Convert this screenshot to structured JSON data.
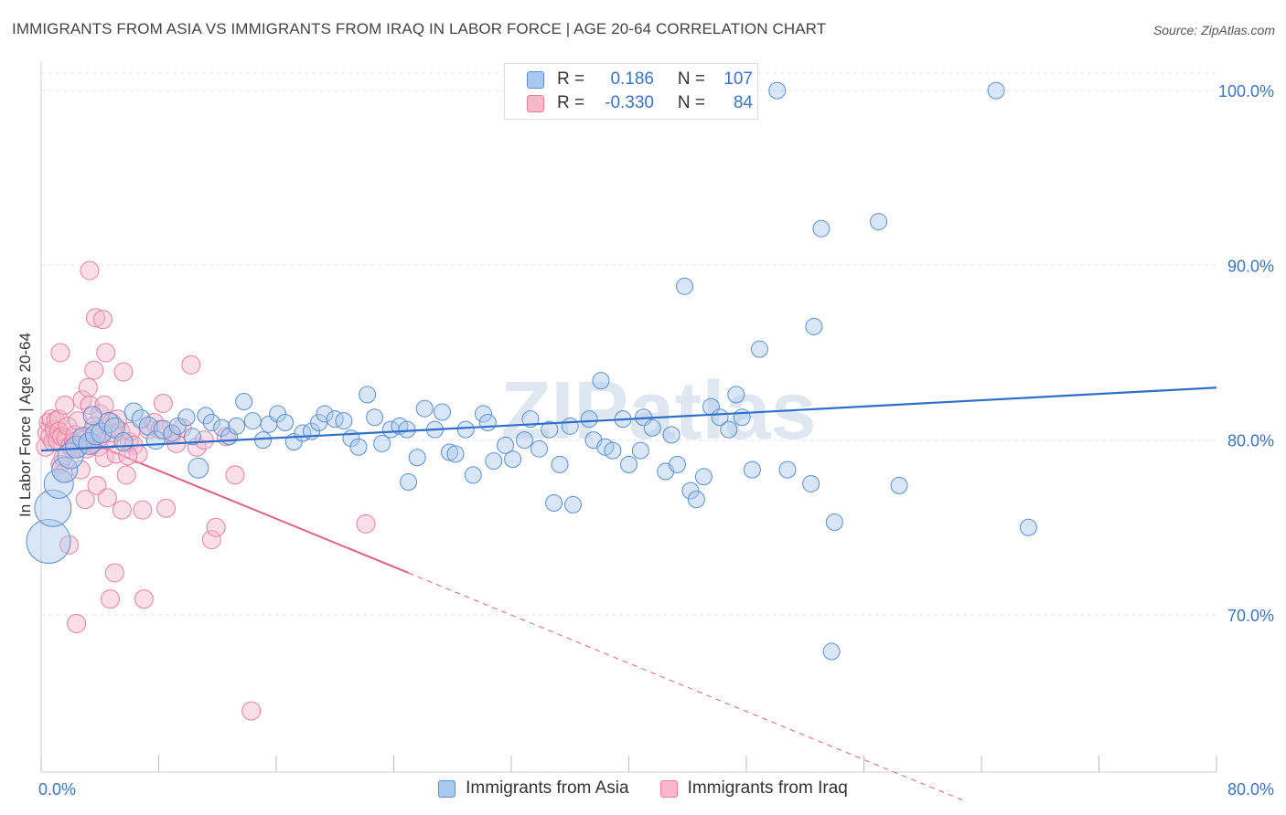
{
  "title": "IMMIGRANTS FROM ASIA VS IMMIGRANTS FROM IRAQ IN LABOR FORCE | AGE 20-64 CORRELATION CHART",
  "source": "Source: ZipAtlas.com",
  "watermark": "ZIPatlas",
  "legend": {
    "asia": {
      "r_label": "R =",
      "r_value": "0.186",
      "n_label": "N =",
      "n_value": "107"
    },
    "iraq": {
      "r_label": "R =",
      "r_value": "-0.330",
      "n_label": "N =",
      "n_value": "84"
    }
  },
  "colors": {
    "asia_fill": "#a9c8ee",
    "asia_stroke": "#5b8fd4",
    "asia_line": "#2f6fc9",
    "iraq_fill": "#f7b8cb",
    "iraq_stroke": "#e87fa0",
    "iraq_line": "#e0608a",
    "tick_label": "#3b74c4"
  },
  "chart_data": {
    "type": "scatter",
    "title": "IMMIGRANTS FROM ASIA VS IMMIGRANTS FROM IRAQ IN LABOR FORCE | AGE 20-64 CORRELATION CHART",
    "xlabel": "",
    "ylabel": "In Labor Force | Age 20-64",
    "xlim": [
      0,
      80
    ],
    "ylim": [
      61,
      101
    ],
    "x_tick_labels": [
      "0.0%",
      "80.0%"
    ],
    "y_ticks": [
      70,
      80,
      90,
      100
    ],
    "y_tick_labels": [
      "70.0%",
      "80.0%",
      "90.0%",
      "100.0%"
    ],
    "grid": true,
    "legend_placement": "top-center",
    "series": [
      {
        "name": "Immigrants from Asia",
        "trend": {
          "x": [
            0,
            80
          ],
          "y": [
            79.4,
            83.0
          ]
        },
        "points": [
          [
            0.5,
            74.2,
            24
          ],
          [
            0.8,
            76.1,
            20
          ],
          [
            1.2,
            77.5,
            16
          ],
          [
            1.6,
            78.3,
            14
          ],
          [
            2.0,
            79.1,
            14
          ],
          [
            2.4,
            79.6,
            12
          ],
          [
            2.9,
            80.1,
            12
          ],
          [
            3.3,
            79.8,
            12
          ],
          [
            3.7,
            80.3,
            11
          ],
          [
            4.1,
            80.4,
            11
          ],
          [
            4.6,
            81.0,
            11
          ],
          [
            5.0,
            80.7,
            11
          ],
          [
            5.6,
            79.9,
            10
          ],
          [
            6.3,
            81.6,
            10
          ],
          [
            6.8,
            81.2,
            10
          ],
          [
            7.3,
            80.8,
            10
          ],
          [
            7.8,
            80.0,
            10
          ],
          [
            8.3,
            80.6,
            10
          ],
          [
            8.9,
            80.4,
            9
          ],
          [
            9.3,
            80.8,
            9
          ],
          [
            9.9,
            81.3,
            9
          ],
          [
            10.3,
            80.2,
            9
          ],
          [
            10.7,
            78.4,
            11
          ],
          [
            11.2,
            81.4,
            9
          ],
          [
            11.6,
            81.0,
            9
          ],
          [
            12.3,
            80.7,
            9
          ],
          [
            12.8,
            80.2,
            9
          ],
          [
            13.3,
            80.8,
            9
          ],
          [
            13.8,
            82.2,
            9
          ],
          [
            14.4,
            81.1,
            9
          ],
          [
            15.1,
            80.0,
            9
          ],
          [
            15.5,
            80.9,
            9
          ],
          [
            16.1,
            81.5,
            9
          ],
          [
            16.6,
            81.0,
            9
          ],
          [
            17.2,
            79.9,
            9
          ],
          [
            17.8,
            80.4,
            9
          ],
          [
            18.4,
            80.5,
            9
          ],
          [
            18.9,
            81.0,
            9
          ],
          [
            19.3,
            81.5,
            9
          ],
          [
            20.0,
            81.2,
            9
          ],
          [
            20.6,
            81.1,
            9
          ],
          [
            21.1,
            80.1,
            9
          ],
          [
            21.6,
            79.6,
            9
          ],
          [
            22.2,
            82.6,
            9
          ],
          [
            22.7,
            81.3,
            9
          ],
          [
            23.2,
            79.8,
            9
          ],
          [
            23.8,
            80.6,
            9
          ],
          [
            24.4,
            80.8,
            9
          ],
          [
            24.9,
            80.6,
            9
          ],
          [
            25.0,
            77.6,
            9
          ],
          [
            25.6,
            79.0,
            9
          ],
          [
            26.1,
            81.8,
            9
          ],
          [
            26.8,
            80.6,
            9
          ],
          [
            27.3,
            81.6,
            9
          ],
          [
            27.8,
            79.3,
            9
          ],
          [
            28.2,
            79.2,
            9
          ],
          [
            28.9,
            80.6,
            9
          ],
          [
            29.4,
            78.0,
            9
          ],
          [
            30.1,
            81.5,
            9
          ],
          [
            30.4,
            81.0,
            9
          ],
          [
            30.8,
            78.8,
            9
          ],
          [
            31.6,
            79.7,
            9
          ],
          [
            32.1,
            78.9,
            9
          ],
          [
            32.9,
            80.0,
            9
          ],
          [
            33.3,
            81.2,
            9
          ],
          [
            33.9,
            79.5,
            9
          ],
          [
            34.6,
            80.6,
            9
          ],
          [
            34.9,
            76.4,
            9
          ],
          [
            35.3,
            78.6,
            9
          ],
          [
            36.0,
            80.8,
            9
          ],
          [
            36.2,
            76.3,
            9
          ],
          [
            37.3,
            81.2,
            9
          ],
          [
            37.6,
            80.0,
            9
          ],
          [
            38.1,
            83.4,
            9
          ],
          [
            38.4,
            79.6,
            9
          ],
          [
            38.9,
            79.4,
            9
          ],
          [
            39.6,
            81.2,
            9
          ],
          [
            40.0,
            78.6,
            9
          ],
          [
            40.8,
            79.4,
            9
          ],
          [
            41.0,
            81.3,
            9
          ],
          [
            41.6,
            80.7,
            9
          ],
          [
            42.5,
            78.2,
            9
          ],
          [
            42.9,
            80.3,
            9
          ],
          [
            43.3,
            78.6,
            9
          ],
          [
            43.8,
            88.8,
            9
          ],
          [
            44.2,
            77.1,
            9
          ],
          [
            44.6,
            76.6,
            9
          ],
          [
            45.1,
            77.9,
            9
          ],
          [
            45.6,
            81.9,
            9
          ],
          [
            46.2,
            81.3,
            9
          ],
          [
            46.8,
            80.6,
            9
          ],
          [
            47.3,
            82.6,
            9
          ],
          [
            47.7,
            81.3,
            9
          ],
          [
            48.4,
            78.3,
            9
          ],
          [
            48.9,
            85.2,
            9
          ],
          [
            50.1,
            100.0,
            9
          ],
          [
            50.8,
            78.3,
            9
          ],
          [
            52.4,
            77.5,
            9
          ],
          [
            52.6,
            86.5,
            9
          ],
          [
            53.1,
            92.1,
            9
          ],
          [
            53.8,
            67.9,
            9
          ],
          [
            54.0,
            75.3,
            9
          ],
          [
            57.0,
            92.5,
            9
          ],
          [
            58.4,
            77.4,
            9
          ],
          [
            67.2,
            75.0,
            9
          ],
          [
            65.0,
            100.0,
            9
          ],
          [
            3.5,
            81.4,
            10
          ]
        ]
      },
      {
        "name": "Immigrants from Iraq",
        "trend": {
          "x": [
            0,
            25
          ],
          "y": [
            81.0,
            72.4
          ]
        },
        "trend_extension": {
          "x": [
            25,
            62.7
          ],
          "y": [
            72.4,
            59.4
          ]
        },
        "points": [
          [
            0.3,
            79.6,
            10
          ],
          [
            0.4,
            80.4,
            10
          ],
          [
            0.5,
            81.0,
            10
          ],
          [
            0.6,
            80.2,
            10
          ],
          [
            0.7,
            81.2,
            10
          ],
          [
            0.8,
            79.9,
            10
          ],
          [
            0.9,
            80.6,
            10
          ],
          [
            1.0,
            81.1,
            10
          ],
          [
            1.1,
            80.0,
            10
          ],
          [
            1.2,
            81.2,
            10
          ],
          [
            1.2,
            80.5,
            10
          ],
          [
            1.3,
            78.6,
            10
          ],
          [
            1.4,
            80.2,
            10
          ],
          [
            1.5,
            79.0,
            10
          ],
          [
            1.5,
            78.1,
            10
          ],
          [
            1.6,
            82.0,
            10
          ],
          [
            1.7,
            80.1,
            10
          ],
          [
            1.8,
            80.8,
            10
          ],
          [
            1.9,
            74.0,
            10
          ],
          [
            2.0,
            79.7,
            10
          ],
          [
            2.2,
            79.9,
            10
          ],
          [
            2.3,
            80.3,
            10
          ],
          [
            2.4,
            69.5,
            10
          ],
          [
            2.5,
            81.1,
            10
          ],
          [
            2.6,
            79.6,
            10
          ],
          [
            2.7,
            78.3,
            10
          ],
          [
            2.8,
            82.3,
            10
          ],
          [
            2.9,
            80.0,
            10
          ],
          [
            3.0,
            76.6,
            10
          ],
          [
            3.1,
            79.5,
            10
          ],
          [
            3.2,
            83.0,
            10
          ],
          [
            3.3,
            82.0,
            10
          ],
          [
            3.4,
            79.8,
            10
          ],
          [
            3.5,
            80.5,
            10
          ],
          [
            3.6,
            84.0,
            10
          ],
          [
            3.7,
            87.0,
            10
          ],
          [
            3.8,
            77.4,
            10
          ],
          [
            3.9,
            79.6,
            10
          ],
          [
            4.0,
            81.5,
            10
          ],
          [
            4.1,
            80.2,
            10
          ],
          [
            4.2,
            86.9,
            10
          ],
          [
            4.3,
            79.0,
            10
          ],
          [
            4.4,
            85.0,
            10
          ],
          [
            4.5,
            76.7,
            10
          ],
          [
            4.6,
            80.0,
            10
          ],
          [
            4.7,
            70.9,
            10
          ],
          [
            4.8,
            81.0,
            10
          ],
          [
            4.9,
            80.4,
            10
          ],
          [
            5.0,
            72.4,
            10
          ],
          [
            5.1,
            79.2,
            10
          ],
          [
            5.2,
            81.2,
            10
          ],
          [
            5.4,
            80.5,
            10
          ],
          [
            5.5,
            76.0,
            10
          ],
          [
            5.6,
            83.9,
            10
          ],
          [
            5.8,
            78.0,
            10
          ],
          [
            6.0,
            79.9,
            10
          ],
          [
            6.1,
            80.5,
            10
          ],
          [
            6.3,
            79.7,
            10
          ],
          [
            6.6,
            79.2,
            10
          ],
          [
            6.9,
            76.0,
            10
          ],
          [
            7.0,
            70.9,
            10
          ],
          [
            7.3,
            80.6,
            10
          ],
          [
            7.7,
            81.0,
            10
          ],
          [
            8.1,
            80.6,
            10
          ],
          [
            8.3,
            82.1,
            10
          ],
          [
            8.5,
            76.1,
            10
          ],
          [
            8.9,
            80.3,
            10
          ],
          [
            9.2,
            79.8,
            10
          ],
          [
            9.6,
            80.7,
            10
          ],
          [
            10.2,
            84.3,
            10
          ],
          [
            10.6,
            79.6,
            10
          ],
          [
            11.1,
            80.0,
            10
          ],
          [
            11.6,
            74.3,
            10
          ],
          [
            11.9,
            75.0,
            10
          ],
          [
            12.6,
            80.2,
            10
          ],
          [
            13.2,
            78.0,
            10
          ],
          [
            14.3,
            64.5,
            10
          ],
          [
            22.1,
            75.2,
            10
          ],
          [
            3.3,
            89.7,
            10
          ],
          [
            1.3,
            85.0,
            10
          ],
          [
            2.1,
            79.5,
            10
          ],
          [
            3.6,
            80.8,
            10
          ],
          [
            4.3,
            82.0,
            10
          ],
          [
            5.9,
            79.1,
            10
          ]
        ]
      }
    ]
  }
}
